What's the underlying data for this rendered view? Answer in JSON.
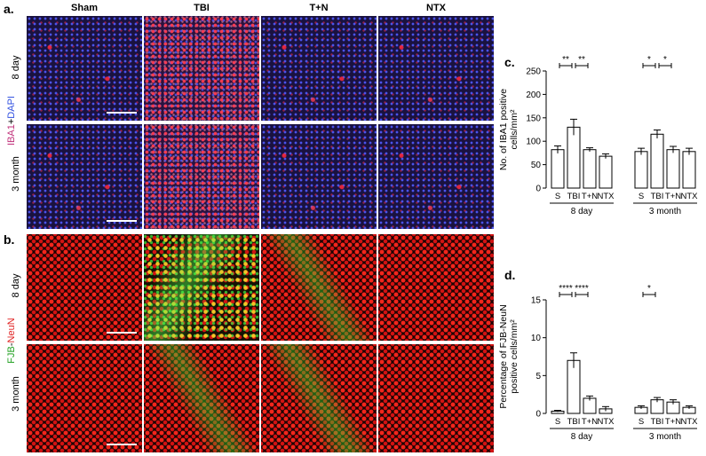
{
  "figure": {
    "panel_a": "a.",
    "panel_b": "b.",
    "panel_c": "c.",
    "panel_d": "d.",
    "columns": [
      "Sham",
      "TBI",
      "T+N",
      "NTX"
    ],
    "rows": [
      "8 day",
      "3 month"
    ],
    "stain_a": {
      "part1": "IBA1",
      "sep": "+",
      "part2": "DAPI"
    },
    "stain_b": {
      "part1": "FJB",
      "sep": "-",
      "part2": "NeuN"
    },
    "colors": {
      "iba1": "#c0307a",
      "dapi": "#3050e0",
      "fjb": "#20a020",
      "neun": "#e02020"
    }
  },
  "chart_data": [
    {
      "type": "bar",
      "ylabel_line1": "No. of IBA1 positive",
      "ylabel_line2": "cells/mm²",
      "ylim": [
        0,
        250
      ],
      "yticks": [
        "0",
        "50",
        "100",
        "150",
        "200",
        "250"
      ],
      "categories": [
        "S",
        "TBI",
        "T+N",
        "NTX",
        "S",
        "TBI",
        "T+N",
        "NTX"
      ],
      "groups": [
        "8 day",
        "3 month"
      ],
      "values": [
        82,
        130,
        82,
        68,
        78,
        115,
        82,
        78
      ],
      "errors": [
        8,
        17,
        4,
        5,
        7,
        9,
        7,
        7
      ],
      "significance": [
        {
          "label": "**",
          "from": 0,
          "to": 1
        },
        {
          "label": "**",
          "from": 1,
          "to": 2
        },
        {
          "label": "*",
          "from": 4,
          "to": 5
        },
        {
          "label": "*",
          "from": 5,
          "to": 6
        }
      ]
    },
    {
      "type": "bar",
      "ylabel_line1": "Percentage of FJB-NeuN",
      "ylabel_line2": "positive cells/mm²",
      "ylim": [
        0,
        15
      ],
      "yticks": [
        "0",
        "5",
        "10",
        "15"
      ],
      "categories": [
        "S",
        "TBI",
        "T+N",
        "NTX",
        "S",
        "TBI",
        "T+N",
        "NTX"
      ],
      "groups": [
        "8 day",
        "3 month"
      ],
      "values": [
        0.3,
        7.0,
        2.0,
        0.6,
        0.8,
        1.8,
        1.5,
        0.8
      ],
      "errors": [
        0.1,
        1.0,
        0.3,
        0.3,
        0.2,
        0.3,
        0.3,
        0.2
      ],
      "significance": [
        {
          "label": "****",
          "from": 0,
          "to": 1
        },
        {
          "label": "****",
          "from": 1,
          "to": 2
        },
        {
          "label": "*",
          "from": 4,
          "to": 5
        }
      ]
    }
  ]
}
